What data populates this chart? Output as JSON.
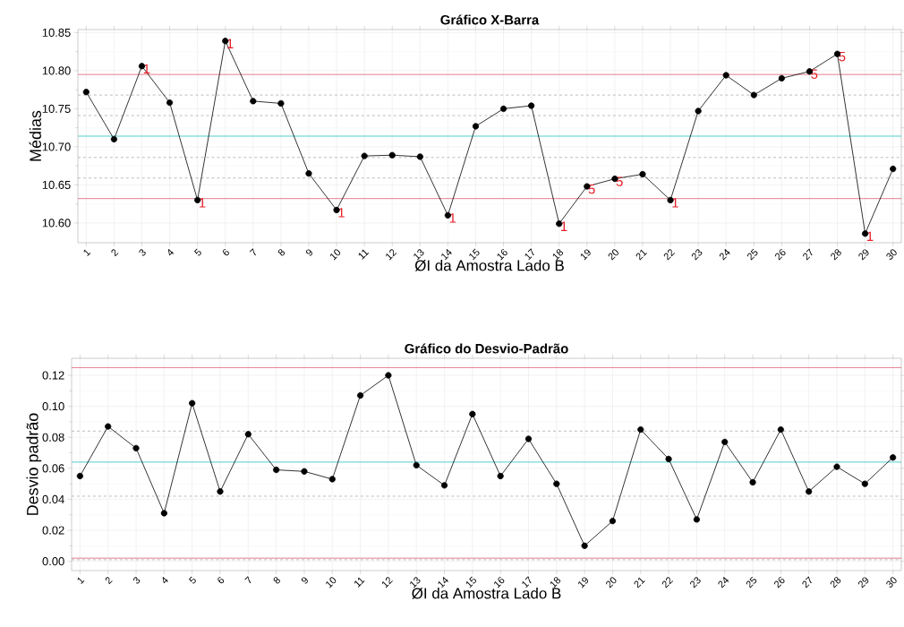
{
  "chart_data": [
    {
      "type": "line",
      "title": "Gráfico X-Barra",
      "xlabel": "ØI da Amostra Lado B",
      "ylabel": "Médias",
      "categories": [
        "1",
        "2",
        "3",
        "4",
        "5",
        "6",
        "7",
        "8",
        "9",
        "10",
        "11",
        "12",
        "13",
        "14",
        "15",
        "16",
        "17",
        "18",
        "19",
        "20",
        "21",
        "22",
        "23",
        "24",
        "25",
        "26",
        "27",
        "28",
        "29",
        "30"
      ],
      "series": [
        {
          "color": "#000000",
          "values": [
            10.772,
            10.71,
            10.806,
            10.758,
            10.63,
            10.839,
            10.76,
            10.757,
            10.665,
            10.617,
            10.688,
            10.689,
            10.687,
            10.61,
            10.727,
            10.75,
            10.754,
            10.599,
            10.648,
            10.658,
            10.664,
            10.63,
            10.747,
            10.794,
            10.768,
            10.79,
            10.799,
            10.822,
            10.586,
            10.671
          ]
        }
      ],
      "ylim": [
        10.574,
        10.854
      ],
      "yticks": [
        {
          "value": 10.6,
          "label": "10.60"
        },
        {
          "value": 10.65,
          "label": "10.65"
        },
        {
          "value": 10.7,
          "label": "10.70"
        },
        {
          "value": 10.75,
          "label": "10.75"
        },
        {
          "value": 10.8,
          "label": "10.80"
        },
        {
          "value": 10.85,
          "label": "10.85"
        }
      ],
      "grid": true,
      "marker": "circle",
      "line_style": "solid",
      "ref_lines": [
        {
          "axis": "y",
          "value": 10.795,
          "color": "#e07080"
        },
        {
          "axis": "y",
          "value": 10.714,
          "color": "#40c8c8"
        },
        {
          "axis": "y",
          "value": 10.632,
          "color": "#e07080"
        },
        {
          "axis": "y",
          "value": 10.768,
          "color": "#b4b4b4",
          "line_style": "dashed"
        },
        {
          "axis": "y",
          "value": 10.741,
          "color": "#b4b4b4",
          "line_style": "dashed"
        },
        {
          "axis": "y",
          "value": 10.686,
          "color": "#b4b4b4",
          "line_style": "dashed"
        },
        {
          "axis": "y",
          "value": 10.659,
          "color": "#b4b4b4",
          "line_style": "dashed"
        }
      ],
      "annotations": [
        {
          "text": "1",
          "x": "3",
          "y": 10.806
        },
        {
          "text": "1",
          "x": "5",
          "y": 10.63
        },
        {
          "text": "1",
          "x": "6",
          "y": 10.839
        },
        {
          "text": "1",
          "x": "10",
          "y": 10.617
        },
        {
          "text": "1",
          "x": "14",
          "y": 10.61
        },
        {
          "text": "1",
          "x": "18",
          "y": 10.599
        },
        {
          "text": "5",
          "x": "19",
          "y": 10.648
        },
        {
          "text": "5",
          "x": "20",
          "y": 10.658
        },
        {
          "text": "1",
          "x": "22",
          "y": 10.63
        },
        {
          "text": "5",
          "x": "27",
          "y": 10.799
        },
        {
          "text": "5",
          "x": "28",
          "y": 10.822
        },
        {
          "text": "1",
          "x": "29",
          "y": 10.586
        }
      ]
    },
    {
      "type": "line",
      "title": "Gráfico do Desvio-Padrão",
      "xlabel": "ØI da Amostra Lado B",
      "ylabel": "Desvio padrão",
      "categories": [
        "1",
        "2",
        "3",
        "4",
        "5",
        "6",
        "7",
        "8",
        "9",
        "10",
        "11",
        "12",
        "13",
        "14",
        "15",
        "16",
        "17",
        "18",
        "19",
        "20",
        "21",
        "22",
        "23",
        "24",
        "25",
        "26",
        "27",
        "28",
        "29",
        "30"
      ],
      "series": [
        {
          "color": "#000000",
          "values": [
            0.055,
            0.087,
            0.073,
            0.031,
            0.102,
            0.045,
            0.082,
            0.059,
            0.058,
            0.053,
            0.107,
            0.12,
            0.062,
            0.049,
            0.095,
            0.055,
            0.079,
            0.05,
            0.01,
            0.026,
            0.085,
            0.066,
            0.027,
            0.077,
            0.051,
            0.085,
            0.045,
            0.061,
            0.05,
            0.067
          ]
        }
      ],
      "ylim": [
        -0.006,
        0.131
      ],
      "yticks": [
        {
          "value": 0,
          "label": "0.00"
        },
        {
          "value": 0.02,
          "label": "0.02"
        },
        {
          "value": 0.04,
          "label": "0.04"
        },
        {
          "value": 0.06,
          "label": "0.06"
        },
        {
          "value": 0.08,
          "label": "0.08"
        },
        {
          "value": 0.1,
          "label": "0.10"
        },
        {
          "value": 0.12,
          "label": "0.12"
        }
      ],
      "grid": true,
      "marker": "circle",
      "line_style": "solid",
      "ref_lines": [
        {
          "axis": "y",
          "value": 0.125,
          "color": "#e07080"
        },
        {
          "axis": "y",
          "value": 0.064,
          "color": "#40c8c8"
        },
        {
          "axis": "y",
          "value": 0.002,
          "color": "#e07080"
        },
        {
          "axis": "y",
          "value": 0.084,
          "color": "#b4b4b4",
          "line_style": "dashed"
        },
        {
          "axis": "y",
          "value": 0.042,
          "color": "#b4b4b4",
          "line_style": "dashed"
        },
        {
          "axis": "y",
          "value": 0.001,
          "color": "#b4b4b4",
          "line_style": "dashed"
        }
      ]
    }
  ]
}
